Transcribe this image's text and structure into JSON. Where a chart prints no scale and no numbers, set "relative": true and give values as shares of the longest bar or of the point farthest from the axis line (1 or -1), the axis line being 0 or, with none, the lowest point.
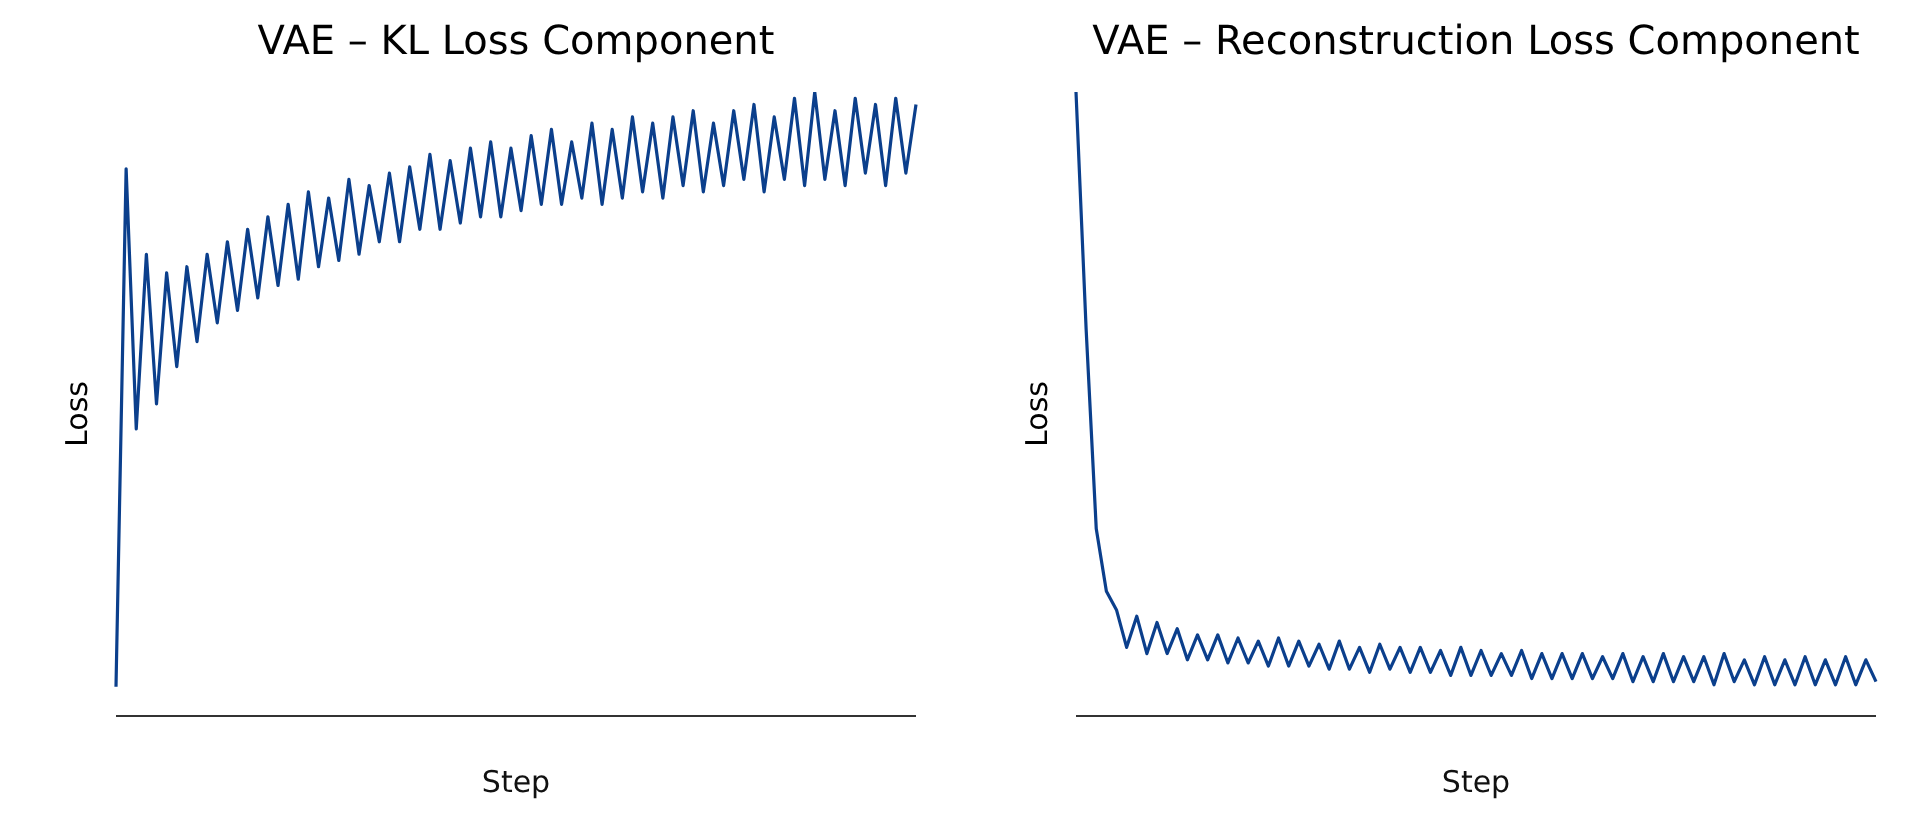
{
  "chart_data": [
    {
      "type": "line",
      "title": "VAE – KL Loss Component",
      "xlabel": "Step",
      "ylabel": "Loss",
      "relative": true,
      "legend": false,
      "grid": false,
      "marker": "none",
      "categories": [
        null,
        null,
        null,
        null,
        null,
        null,
        null,
        null,
        null,
        null,
        null,
        null,
        null,
        null,
        null,
        null,
        null,
        null,
        null,
        null,
        null,
        null,
        null,
        null,
        null,
        null,
        null,
        null,
        null,
        null,
        null,
        null,
        null,
        null,
        null,
        null,
        null,
        null,
        null,
        null,
        null,
        null,
        null,
        null,
        null,
        null,
        null,
        null,
        null,
        null,
        null,
        null,
        null,
        null,
        null,
        null,
        null,
        null,
        null,
        null,
        null,
        null,
        null,
        null,
        null,
        null,
        null,
        null,
        null,
        null,
        null,
        null,
        null,
        null,
        null,
        null,
        null,
        null,
        null,
        null
      ],
      "series": [
        {
          "color": "#0b3f8c",
          "values": [
            0.047,
            0.877,
            0.46,
            0.74,
            0.5,
            0.71,
            0.56,
            0.72,
            0.6,
            0.74,
            0.63,
            0.76,
            0.65,
            0.78,
            0.67,
            0.8,
            0.69,
            0.82,
            0.7,
            0.84,
            0.72,
            0.83,
            0.73,
            0.86,
            0.74,
            0.85,
            0.76,
            0.87,
            0.76,
            0.88,
            0.78,
            0.9,
            0.78,
            0.89,
            0.79,
            0.91,
            0.8,
            0.92,
            0.8,
            0.91,
            0.81,
            0.93,
            0.82,
            0.94,
            0.82,
            0.92,
            0.83,
            0.95,
            0.82,
            0.94,
            0.83,
            0.96,
            0.84,
            0.95,
            0.83,
            0.96,
            0.85,
            0.97,
            0.84,
            0.95,
            0.85,
            0.97,
            0.86,
            0.98,
            0.84,
            0.96,
            0.86,
            0.99,
            0.85,
            1.0,
            0.86,
            0.97,
            0.85,
            0.99,
            0.87,
            0.98,
            0.85,
            0.99,
            0.87,
            0.98
          ]
        }
      ]
    },
    {
      "type": "line",
      "title": "VAE – Reconstruction Loss Component",
      "xlabel": "Step",
      "ylabel": "Loss",
      "relative": true,
      "legend": false,
      "grid": false,
      "marker": "none",
      "categories": [
        null,
        null,
        null,
        null,
        null,
        null,
        null,
        null,
        null,
        null,
        null,
        null,
        null,
        null,
        null,
        null,
        null,
        null,
        null,
        null,
        null,
        null,
        null,
        null,
        null,
        null,
        null,
        null,
        null,
        null,
        null,
        null,
        null,
        null,
        null,
        null,
        null,
        null,
        null,
        null,
        null,
        null,
        null,
        null,
        null,
        null,
        null,
        null,
        null,
        null,
        null,
        null,
        null,
        null,
        null,
        null,
        null,
        null,
        null,
        null,
        null,
        null,
        null,
        null,
        null,
        null,
        null,
        null,
        null,
        null,
        null,
        null,
        null,
        null,
        null,
        null,
        null,
        null,
        null,
        null
      ],
      "series": [
        {
          "color": "#0b3f8c",
          "values": [
            1.0,
            0.62,
            0.3,
            0.2,
            0.17,
            0.11,
            0.16,
            0.1,
            0.15,
            0.1,
            0.14,
            0.09,
            0.13,
            0.09,
            0.13,
            0.085,
            0.125,
            0.085,
            0.12,
            0.08,
            0.125,
            0.08,
            0.12,
            0.08,
            0.115,
            0.075,
            0.12,
            0.075,
            0.11,
            0.07,
            0.115,
            0.075,
            0.11,
            0.07,
            0.11,
            0.07,
            0.105,
            0.065,
            0.11,
            0.065,
            0.105,
            0.065,
            0.1,
            0.065,
            0.105,
            0.06,
            0.1,
            0.06,
            0.1,
            0.06,
            0.1,
            0.06,
            0.095,
            0.06,
            0.1,
            0.055,
            0.095,
            0.055,
            0.1,
            0.055,
            0.095,
            0.055,
            0.095,
            0.05,
            0.1,
            0.055,
            0.09,
            0.05,
            0.095,
            0.05,
            0.09,
            0.05,
            0.095,
            0.05,
            0.09,
            0.05,
            0.095,
            0.05,
            0.09,
            0.055
          ]
        }
      ]
    }
  ]
}
